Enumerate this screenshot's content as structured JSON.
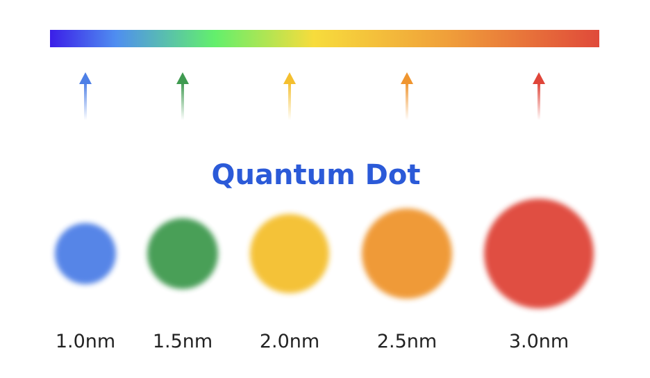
{
  "title": "Quantum Dot",
  "dots": [
    {
      "label": "1.0nm",
      "color": "#4d7fe6"
    },
    {
      "label": "1.5nm",
      "color": "#3f9a50"
    },
    {
      "label": "2.0nm",
      "color": "#f4bf2f"
    },
    {
      "label": "2.5nm",
      "color": "#ef952f"
    },
    {
      "label": "3.0nm",
      "color": "#df4539"
    }
  ]
}
